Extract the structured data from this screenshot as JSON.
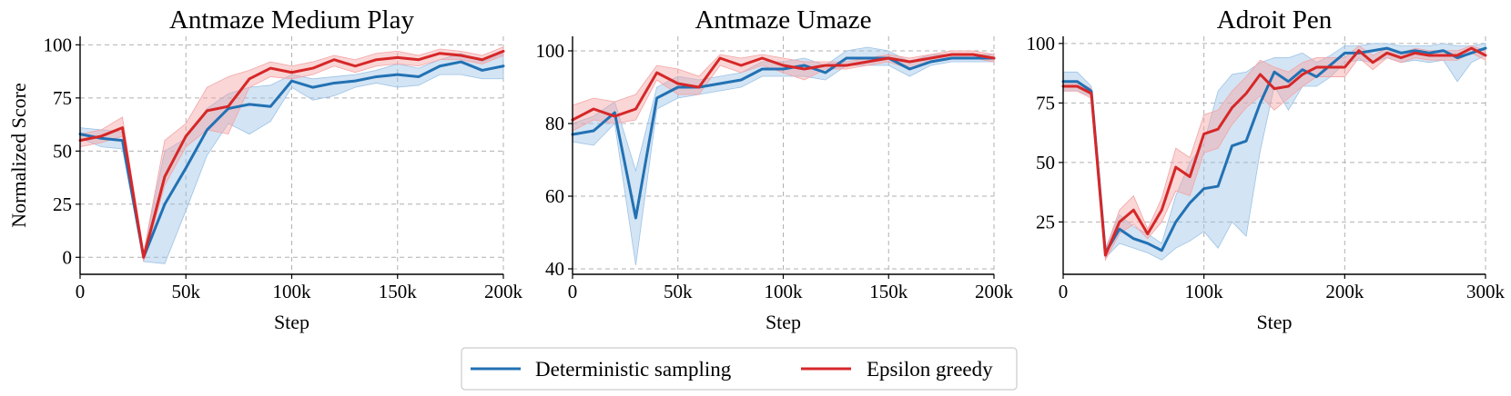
{
  "colors": {
    "deterministic": "#2271b3",
    "epsilon": "#d62728",
    "deterministic_band": "#9dc3e6",
    "epsilon_band": "#f4a3a4"
  },
  "legend": {
    "location": "bottom-center",
    "items": [
      {
        "label": "Deterministic sampling",
        "color": "#2271b3"
      },
      {
        "label": "Epsilon greedy",
        "color": "#d62728"
      }
    ]
  },
  "chart_data": [
    {
      "type": "line",
      "title": "Antmaze Medium Play",
      "xlabel": "Step",
      "ylabel": "Normalized Score",
      "xlim": [
        0,
        200000
      ],
      "ylim": [
        -8,
        104
      ],
      "xticks": [
        0,
        50000,
        100000,
        150000,
        200000
      ],
      "xtick_labels": [
        "0",
        "50k",
        "100k",
        "150k",
        "200k"
      ],
      "yticks": [
        0,
        25,
        50,
        75,
        100
      ],
      "ytick_labels": [
        "0",
        "25",
        "50",
        "75",
        "100"
      ],
      "grid": true,
      "x": [
        0,
        10000,
        20000,
        30000,
        40000,
        50000,
        60000,
        70000,
        80000,
        90000,
        100000,
        110000,
        120000,
        130000,
        140000,
        150000,
        160000,
        170000,
        180000,
        190000,
        200000
      ],
      "series": [
        {
          "name": "Deterministic sampling",
          "values": [
            58,
            56,
            55,
            0,
            25,
            42,
            60,
            70,
            72,
            71,
            83,
            80,
            82,
            83,
            85,
            86,
            85,
            90,
            92,
            88,
            90
          ],
          "lower": [
            56,
            52,
            51,
            -2,
            -3,
            22,
            48,
            63,
            58,
            64,
            80,
            74,
            76,
            80,
            82,
            80,
            81,
            86,
            86,
            84,
            84
          ],
          "upper": [
            61,
            60,
            59,
            2,
            50,
            56,
            70,
            77,
            80,
            81,
            86,
            84,
            85,
            86,
            88,
            91,
            89,
            93,
            96,
            92,
            96
          ]
        },
        {
          "name": "Epsilon greedy",
          "values": [
            55,
            57,
            61,
            0,
            38,
            57,
            69,
            71,
            84,
            89,
            87,
            89,
            93,
            90,
            93,
            94,
            93,
            96,
            95,
            93,
            97
          ],
          "lower": [
            52,
            54,
            57,
            -2,
            34,
            52,
            60,
            58,
            80,
            85,
            84,
            86,
            90,
            87,
            90,
            91,
            90,
            93,
            93,
            91,
            95
          ],
          "upper": [
            58,
            60,
            66,
            2,
            55,
            63,
            80,
            85,
            88,
            92,
            90,
            92,
            95,
            93,
            96,
            97,
            95,
            98,
            97,
            95,
            99
          ]
        }
      ]
    },
    {
      "type": "line",
      "title": "Antmaze Umaze",
      "xlabel": "Step",
      "ylabel": "",
      "xlim": [
        0,
        200000
      ],
      "ylim": [
        38.5,
        104
      ],
      "xticks": [
        0,
        50000,
        100000,
        150000,
        200000
      ],
      "xtick_labels": [
        "0",
        "50k",
        "100k",
        "150k",
        "200k"
      ],
      "yticks": [
        40,
        60,
        80,
        100
      ],
      "ytick_labels": [
        "40",
        "60",
        "80",
        "100"
      ],
      "grid": true,
      "x": [
        0,
        10000,
        20000,
        30000,
        40000,
        50000,
        60000,
        70000,
        80000,
        90000,
        100000,
        110000,
        120000,
        130000,
        140000,
        150000,
        160000,
        170000,
        180000,
        190000,
        200000
      ],
      "series": [
        {
          "name": "Deterministic sampling",
          "values": [
            77,
            78,
            83,
            54,
            87,
            90,
            90,
            91,
            92,
            95,
            95,
            96,
            94,
            98,
            98,
            98,
            95,
            97,
            98,
            98,
            98
          ],
          "lower": [
            75,
            74,
            80,
            41,
            84,
            87,
            88,
            89,
            90,
            93,
            93,
            93,
            92,
            96,
            96,
            96,
            93,
            96,
            97,
            97,
            97
          ],
          "upper": [
            80,
            82,
            86,
            67,
            90,
            93,
            92,
            93,
            94,
            97,
            97,
            98,
            96,
            100,
            101,
            100,
            97,
            99,
            99,
            99,
            99
          ]
        },
        {
          "name": "Epsilon greedy",
          "values": [
            81,
            84,
            82,
            84,
            94,
            91,
            90,
            98,
            96,
            98,
            96,
            95,
            96,
            96,
            97,
            98,
            97,
            98,
            99,
            99,
            98
          ],
          "lower": [
            78,
            81,
            80,
            81,
            92,
            88,
            88,
            96,
            94,
            96,
            94,
            92,
            95,
            95,
            96,
            97,
            95,
            97,
            98,
            98,
            97
          ],
          "upper": [
            85,
            87,
            86,
            88,
            96,
            95,
            93,
            99,
            98,
            99,
            98,
            97,
            97,
            97,
            98,
            99,
            98,
            99,
            100,
            100,
            99
          ]
        }
      ]
    },
    {
      "type": "line",
      "title": "Adroit Pen",
      "xlabel": "Step",
      "ylabel": "",
      "xlim": [
        0,
        300000
      ],
      "ylim": [
        3,
        103
      ],
      "xticks": [
        0,
        100000,
        200000,
        300000
      ],
      "xtick_labels": [
        "0",
        "100k",
        "200k",
        "300k"
      ],
      "yticks": [
        25,
        50,
        75,
        100
      ],
      "ytick_labels": [
        "25",
        "50",
        "75",
        "100"
      ],
      "grid": true,
      "x": [
        0,
        10000,
        20000,
        30000,
        40000,
        50000,
        60000,
        70000,
        80000,
        90000,
        100000,
        110000,
        120000,
        130000,
        140000,
        150000,
        160000,
        170000,
        180000,
        190000,
        200000,
        210000,
        220000,
        230000,
        240000,
        250000,
        260000,
        270000,
        280000,
        290000,
        300000
      ],
      "series": [
        {
          "name": "Deterministic sampling",
          "values": [
            84,
            84,
            80,
            12,
            22,
            18,
            16,
            13,
            25,
            33,
            39,
            40,
            57,
            59,
            75,
            88,
            84,
            89,
            86,
            91,
            96,
            96,
            97,
            98,
            96,
            97,
            96,
            97,
            94,
            96,
            98
          ],
          "lower": [
            80,
            80,
            78,
            10,
            16,
            14,
            12,
            9,
            14,
            17,
            21,
            14,
            25,
            19,
            55,
            82,
            72,
            82,
            82,
            86,
            92,
            93,
            92,
            94,
            92,
            93,
            92,
            93,
            84,
            92,
            95
          ],
          "upper": [
            88,
            88,
            82,
            14,
            28,
            23,
            20,
            16,
            36,
            50,
            58,
            80,
            87,
            88,
            92,
            94,
            94,
            96,
            92,
            95,
            99,
            99,
            100,
            100,
            99,
            99,
            99,
            100,
            99,
            99,
            100
          ]
        },
        {
          "name": "Epsilon greedy",
          "values": [
            82,
            82,
            79,
            11,
            25,
            30,
            20,
            30,
            48,
            44,
            62,
            64,
            73,
            79,
            87,
            81,
            82,
            87,
            90,
            90,
            90,
            97,
            92,
            96,
            94,
            96,
            95,
            95,
            95,
            98,
            95
          ],
          "lower": [
            80,
            80,
            77,
            9,
            20,
            24,
            18,
            25,
            38,
            36,
            54,
            56,
            66,
            73,
            78,
            72,
            77,
            82,
            86,
            86,
            86,
            94,
            89,
            94,
            92,
            94,
            93,
            93,
            93,
            96,
            93
          ],
          "upper": [
            84,
            84,
            81,
            13,
            30,
            36,
            22,
            35,
            56,
            52,
            70,
            72,
            80,
            86,
            93,
            90,
            88,
            92,
            94,
            94,
            94,
            99,
            95,
            98,
            96,
            98,
            97,
            97,
            97,
            99,
            97
          ]
        }
      ]
    }
  ]
}
